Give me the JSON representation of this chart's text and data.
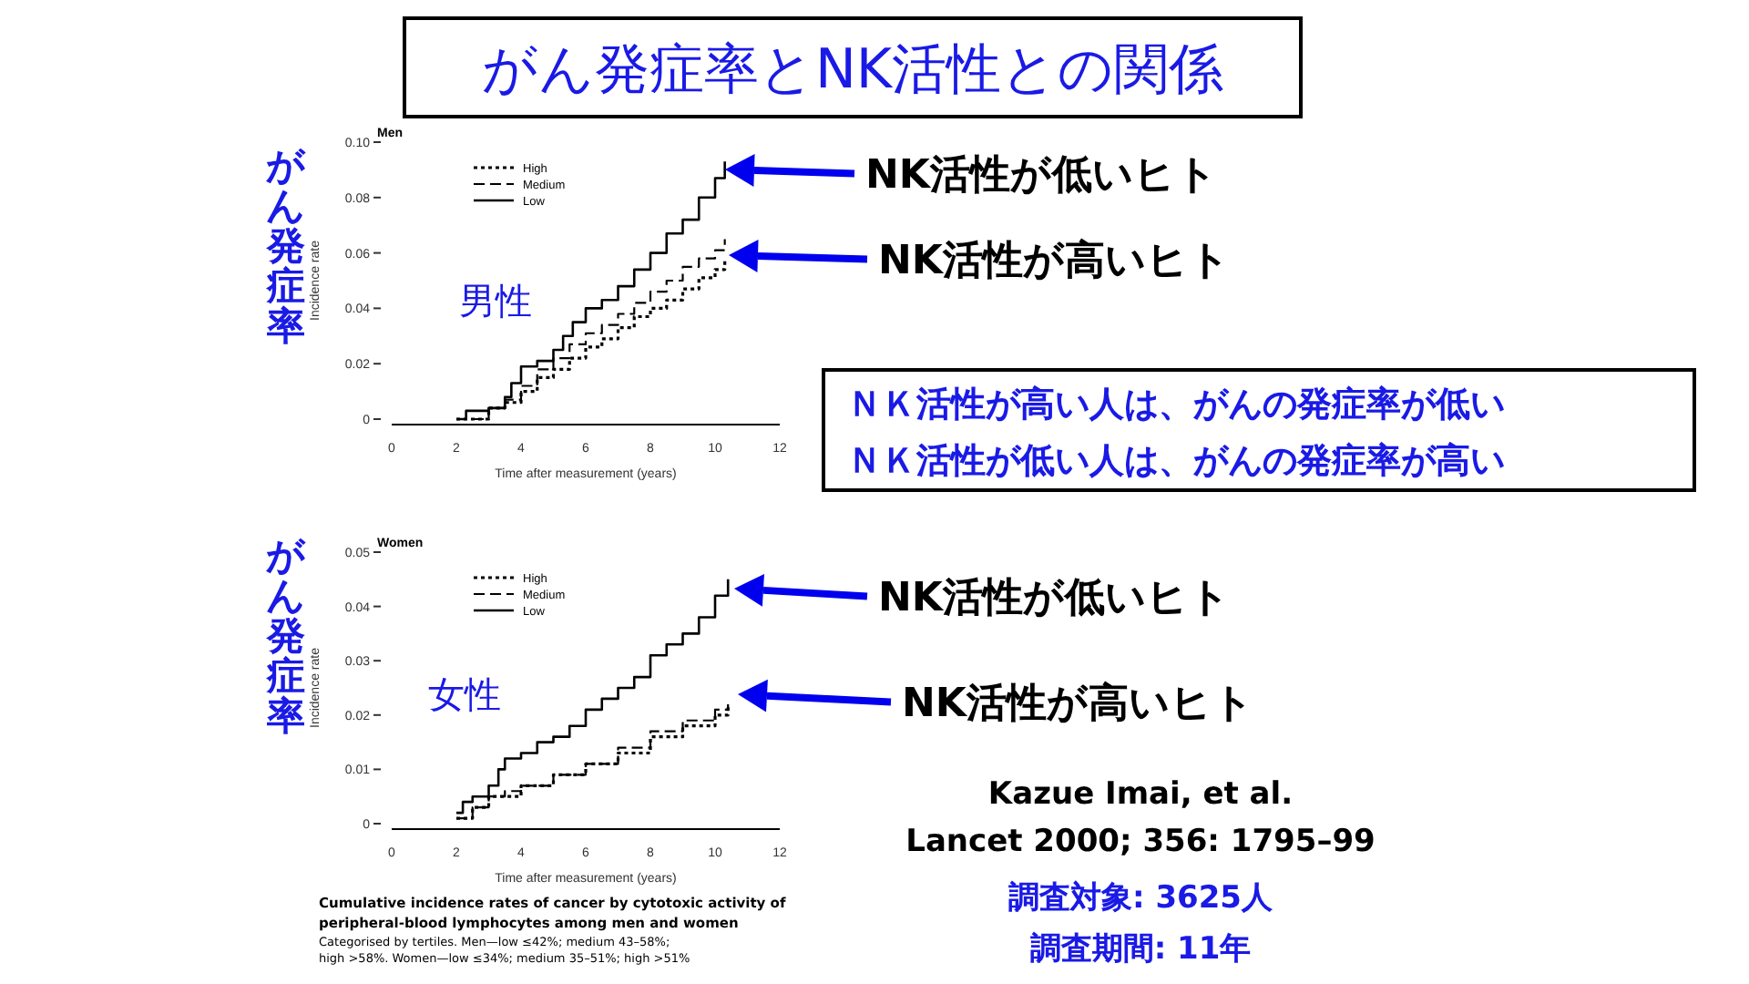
{
  "chart_data": [
    {
      "type": "step",
      "title": "Men",
      "xlabel": "Time after measurement (years)",
      "ylabel": "Incidence rate",
      "xlim": [
        0,
        12
      ],
      "xticks": [
        0,
        2,
        4,
        6,
        8,
        10,
        12
      ],
      "ylim": [
        0,
        0.1
      ],
      "yticks": [
        0,
        0.02,
        0.04,
        0.06,
        0.08,
        {
          "value": 0.1,
          "label": "0.10"
        }
      ],
      "legend": "top left",
      "grid": false,
      "series": [
        {
          "name": "High",
          "color": "#000000",
          "line_style": "dotted",
          "x": [
            2,
            3,
            3.5,
            4,
            4.5,
            5,
            5.5,
            6,
            6.5,
            7,
            7.5,
            8,
            8.5,
            9,
            9.5,
            10,
            10.3
          ],
          "values": [
            0,
            0.004,
            0.006,
            0.01,
            0.015,
            0.018,
            0.022,
            0.026,
            0.029,
            0.033,
            0.037,
            0.04,
            0.043,
            0.047,
            0.051,
            0.054,
            0.058
          ]
        },
        {
          "name": "Medium",
          "color": "#000000",
          "line_style": "dashed",
          "x": [
            2,
            3,
            3.5,
            4,
            4.5,
            5,
            5.5,
            6,
            6.5,
            7,
            7.5,
            8,
            8.5,
            9,
            9.5,
            10,
            10.3
          ],
          "values": [
            0,
            0.004,
            0.007,
            0.012,
            0.018,
            0.022,
            0.027,
            0.031,
            0.034,
            0.038,
            0.042,
            0.046,
            0.05,
            0.055,
            0.058,
            0.061,
            0.065
          ]
        },
        {
          "name": "Low",
          "color": "#000000",
          "line_style": "solid",
          "x": [
            2,
            2.3,
            3,
            3.5,
            3.7,
            4,
            4.5,
            5,
            5.3,
            5.6,
            6,
            6.5,
            7,
            7.5,
            8,
            8.5,
            9,
            9.5,
            10,
            10.3
          ],
          "values": [
            0,
            0.003,
            0.004,
            0.008,
            0.013,
            0.019,
            0.021,
            0.025,
            0.03,
            0.035,
            0.04,
            0.043,
            0.048,
            0.054,
            0.06,
            0.067,
            0.072,
            0.08,
            0.087,
            0.093
          ]
        }
      ],
      "annotations": [
        "がん発症率とNK活性との関係",
        "がん発症率",
        "男性",
        "NK活性が低いヒト",
        "NK活性が高いヒト",
        "ＮＫ活性が高い人は、がんの発症率が低い",
        "ＮＫ活性が低い人は、がんの発症率が高い"
      ]
    },
    {
      "type": "step",
      "title": "Women",
      "xlabel": "Time after measurement (years)",
      "ylabel": "Incidence rate",
      "xlim": [
        0,
        12
      ],
      "xticks": [
        0,
        2,
        4,
        6,
        8,
        10,
        12
      ],
      "ylim": [
        0,
        0.05
      ],
      "yticks": [
        0,
        0.01,
        0.02,
        0.03,
        0.04,
        0.05
      ],
      "legend": "top left",
      "grid": false,
      "series": [
        {
          "name": "High",
          "color": "#000000",
          "line_style": "dotted",
          "x": [
            2,
            2.5,
            3,
            4,
            5,
            6,
            7,
            8,
            9,
            10,
            10.4
          ],
          "values": [
            0.001,
            0.003,
            0.005,
            0.007,
            0.009,
            0.011,
            0.013,
            0.016,
            0.018,
            0.02,
            0.022
          ]
        },
        {
          "name": "Medium",
          "color": "#000000",
          "line_style": "dashed",
          "x": [
            2,
            2.5,
            3,
            3.5,
            4,
            5,
            6,
            7,
            8,
            9,
            10,
            10.4
          ],
          "values": [
            0.001,
            0.003,
            0.005,
            0.006,
            0.007,
            0.009,
            0.011,
            0.014,
            0.017,
            0.019,
            0.021,
            0.022
          ]
        },
        {
          "name": "Low",
          "color": "#000000",
          "line_style": "solid",
          "x": [
            2,
            2.2,
            2.5,
            3,
            3.3,
            3.5,
            4,
            4.5,
            5,
            5.5,
            6,
            6.5,
            7,
            7.5,
            8,
            8.5,
            9,
            9.5,
            10,
            10.4
          ],
          "values": [
            0.002,
            0.004,
            0.005,
            0.007,
            0.01,
            0.012,
            0.013,
            0.015,
            0.016,
            0.018,
            0.021,
            0.023,
            0.025,
            0.027,
            0.031,
            0.033,
            0.035,
            0.038,
            0.042,
            0.045
          ]
        }
      ],
      "annotations": [
        "がん発症率",
        "女性",
        "NK活性が低いヒト",
        "NK活性が高いヒト",
        "Kazue Imai, et al.",
        "Lancet 2000; 356: 1795–99",
        "調査対象: 3625人",
        "調査期間: 11年",
        "Cumulative incidence rates of cancer by cytotoxic activity of",
        "peripheral-blood lymphocytes among men and women",
        "Categorised by tertiles. Men—low ≤42%; medium 43–58%;",
        "high >58%. Women—low ≤34%; medium 35–51%; high >51%"
      ]
    }
  ]
}
